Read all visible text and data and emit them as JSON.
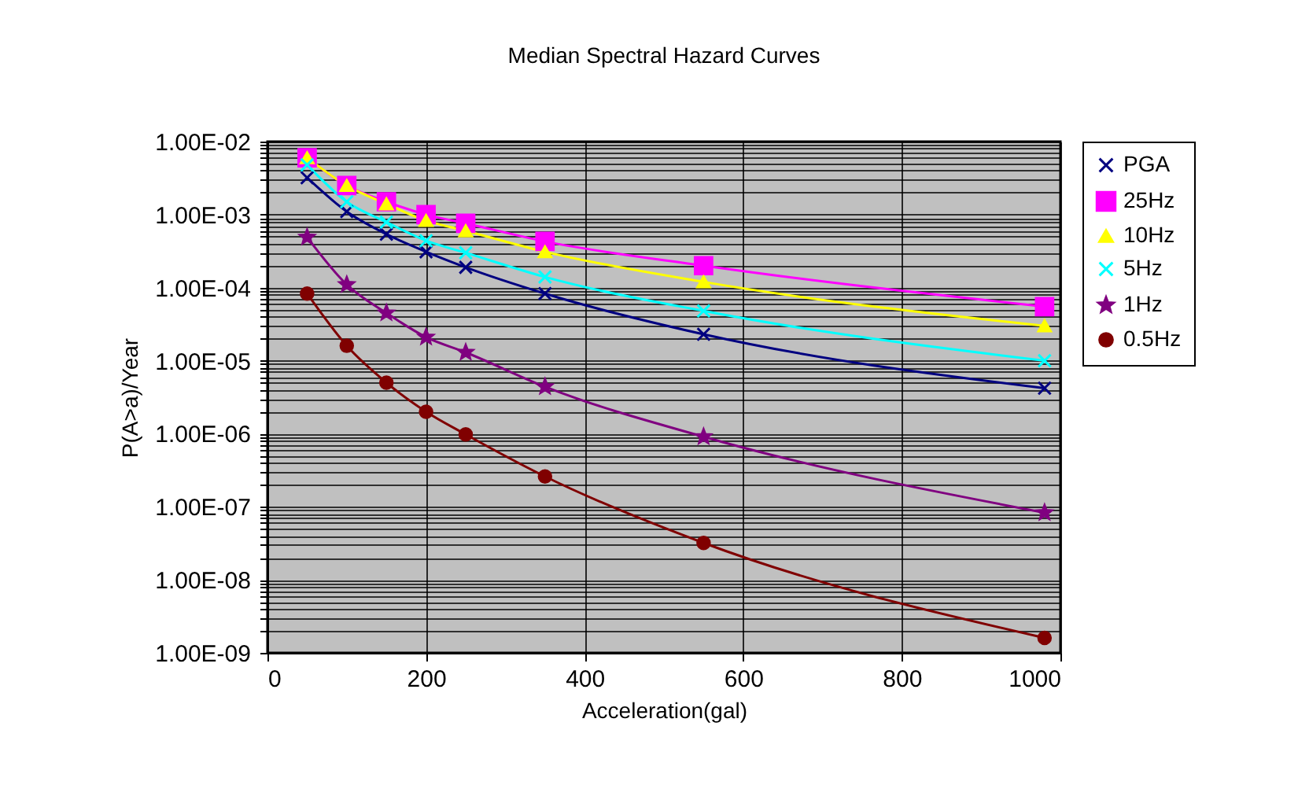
{
  "chart_data": {
    "type": "line",
    "title": "Median Spectral Hazard Curves",
    "xlabel": "Acceleration(gal)",
    "ylabel": "P(A>a)/Year",
    "x": [
      50,
      100,
      150,
      200,
      250,
      350,
      550,
      980
    ],
    "series": [
      {
        "name": "PGA",
        "color": "#000080",
        "marker": "cross",
        "values": [
          0.0032,
          0.0011,
          0.00054,
          0.00031,
          0.00019,
          8.3e-05,
          2.3e-05,
          4.2e-06
        ]
      },
      {
        "name": "25Hz",
        "color": "#ff00ff",
        "marker": "square",
        "values": [
          0.006,
          0.0025,
          0.0015,
          0.001,
          0.00076,
          0.00043,
          0.0002,
          5.5e-05
        ]
      },
      {
        "name": "10Hz",
        "color": "#ffff00",
        "marker": "triangle",
        "values": [
          0.006,
          0.0025,
          0.0014,
          0.00083,
          0.0006,
          0.00031,
          0.00012,
          3e-05
        ]
      },
      {
        "name": "5Hz",
        "color": "#00ffff",
        "marker": "cross",
        "values": [
          0.0048,
          0.0015,
          0.00079,
          0.00044,
          0.0003,
          0.00014,
          4.8e-05,
          1e-05
        ]
      },
      {
        "name": "1Hz",
        "color": "#800080",
        "marker": "star",
        "values": [
          0.00049,
          0.00011,
          4.5e-05,
          2.1e-05,
          1.3e-05,
          4.4e-06,
          9.1e-07,
          8.3e-08
        ]
      },
      {
        "name": "0.5Hz",
        "color": "#800000",
        "marker": "circle",
        "values": [
          8.3e-05,
          1.6e-05,
          5e-06,
          2e-06,
          9.8e-07,
          2.6e-07,
          3.2e-08,
          1.6e-09
        ]
      }
    ],
    "log": "y",
    "xlim": [
      0,
      1000
    ],
    "xticks": [
      0,
      200,
      400,
      600,
      800,
      1000
    ],
    "ylim": [
      1e-09,
      0.01
    ],
    "yticks": [
      {
        "value": 1e-09,
        "label": "1.00E-09"
      },
      {
        "value": 2e-09,
        "label": null
      },
      {
        "value": 3e-09,
        "label": null
      },
      {
        "value": 4e-09,
        "label": null
      },
      {
        "value": 5e-09,
        "label": null
      },
      {
        "value": 6e-09,
        "label": null
      },
      {
        "value": 7e-09,
        "label": null
      },
      {
        "value": 8e-09,
        "label": null
      },
      {
        "value": 9e-09,
        "label": null
      },
      {
        "value": 1e-08,
        "label": "1.00E-08"
      },
      {
        "value": 2e-08,
        "label": null
      },
      {
        "value": 3e-08,
        "label": null
      },
      {
        "value": 4e-08,
        "label": null
      },
      {
        "value": 5e-08,
        "label": null
      },
      {
        "value": 6e-08,
        "label": null
      },
      {
        "value": 7e-08,
        "label": null
      },
      {
        "value": 8e-08,
        "label": null
      },
      {
        "value": 9e-08,
        "label": null
      },
      {
        "value": 1e-07,
        "label": "1.00E-07"
      },
      {
        "value": 2e-07,
        "label": null
      },
      {
        "value": 3e-07,
        "label": null
      },
      {
        "value": 4e-07,
        "label": null
      },
      {
        "value": 5e-07,
        "label": null
      },
      {
        "value": 6e-07,
        "label": null
      },
      {
        "value": 7e-07,
        "label": null
      },
      {
        "value": 8e-07,
        "label": null
      },
      {
        "value": 9e-07,
        "label": null
      },
      {
        "value": 1e-06,
        "label": "1.00E-06"
      },
      {
        "value": 2e-06,
        "label": null
      },
      {
        "value": 3e-06,
        "label": null
      },
      {
        "value": 4e-06,
        "label": null
      },
      {
        "value": 5e-06,
        "label": null
      },
      {
        "value": 6e-06,
        "label": null
      },
      {
        "value": 7e-06,
        "label": null
      },
      {
        "value": 8e-06,
        "label": null
      },
      {
        "value": 9e-06,
        "label": null
      },
      {
        "value": 1e-05,
        "label": "1.00E-05"
      },
      {
        "value": 2e-05,
        "label": null
      },
      {
        "value": 3e-05,
        "label": null
      },
      {
        "value": 4e-05,
        "label": null
      },
      {
        "value": 5e-05,
        "label": null
      },
      {
        "value": 6e-05,
        "label": null
      },
      {
        "value": 7e-05,
        "label": null
      },
      {
        "value": 8e-05,
        "label": null
      },
      {
        "value": 9e-05,
        "label": null
      },
      {
        "value": 0.0001,
        "label": "1.00E-04"
      },
      {
        "value": 0.0002,
        "label": null
      },
      {
        "value": 0.0003,
        "label": null
      },
      {
        "value": 0.0004,
        "label": null
      },
      {
        "value": 0.0005,
        "label": null
      },
      {
        "value": 0.0006,
        "label": null
      },
      {
        "value": 0.0007,
        "label": null
      },
      {
        "value": 0.0008,
        "label": null
      },
      {
        "value": 0.0009,
        "label": null
      },
      {
        "value": 0.001,
        "label": "1.00E-03"
      },
      {
        "value": 0.002,
        "label": null
      },
      {
        "value": 0.003,
        "label": null
      },
      {
        "value": 0.004,
        "label": null
      },
      {
        "value": 0.005,
        "label": null
      },
      {
        "value": 0.006,
        "label": null
      },
      {
        "value": 0.007,
        "label": null
      },
      {
        "value": 0.008,
        "label": null
      },
      {
        "value": 0.009,
        "label": null
      },
      {
        "value": 0.01,
        "label": "1.00E-02"
      }
    ],
    "grid": true,
    "legend": "right",
    "line_style": "solid"
  }
}
